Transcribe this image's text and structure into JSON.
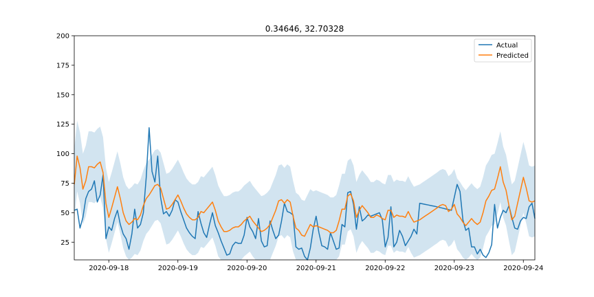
{
  "chart_data": {
    "type": "line",
    "title": "0.34646, 32.70328",
    "xlabel": "",
    "ylabel": "",
    "x_start": "2020-09-17 12:00",
    "x_step_hours": 1,
    "x_ticks": [
      "2020-09-18",
      "2020-09-19",
      "2020-09-20",
      "2020-09-21",
      "2020-09-22",
      "2020-09-23",
      "2020-09-24"
    ],
    "ylim": [
      10,
      200
    ],
    "y_ticks": [
      25,
      50,
      75,
      100,
      125,
      150,
      175,
      200
    ],
    "legend_position": "top-right",
    "grid": false,
    "colors": {
      "actual": "#1f77b4",
      "predicted": "#ff7f0e",
      "band": "#1f77b4"
    },
    "series": [
      {
        "name": "Actual",
        "key": "actual",
        "anchors": [
          [
            0,
            52
          ],
          [
            1,
            53
          ],
          [
            2,
            37
          ],
          [
            3,
            46
          ],
          [
            4,
            62
          ],
          [
            5,
            68
          ],
          [
            6,
            70
          ],
          [
            7,
            77
          ],
          [
            8,
            59
          ],
          [
            9,
            65
          ],
          [
            10,
            82
          ],
          [
            11,
            28
          ],
          [
            12,
            38
          ],
          [
            13,
            35
          ],
          [
            14,
            45
          ],
          [
            15,
            52
          ],
          [
            16,
            40
          ],
          [
            17,
            32
          ],
          [
            18,
            28
          ],
          [
            19,
            19
          ],
          [
            20,
            32
          ],
          [
            21,
            53
          ],
          [
            22,
            37
          ],
          [
            23,
            40
          ],
          [
            24,
            50
          ],
          [
            25,
            80
          ],
          [
            26,
            122
          ],
          [
            27,
            85
          ],
          [
            28,
            76
          ],
          [
            29,
            98
          ],
          [
            30,
            63
          ],
          [
            31,
            49
          ],
          [
            32,
            51
          ],
          [
            33,
            47
          ],
          [
            34,
            52
          ],
          [
            35,
            61
          ],
          [
            36,
            59
          ],
          [
            37,
            51
          ],
          [
            38,
            44
          ],
          [
            39,
            37
          ],
          [
            40,
            33
          ],
          [
            41,
            30
          ],
          [
            42,
            28
          ],
          [
            43,
            51
          ],
          [
            44,
            41
          ],
          [
            45,
            33
          ],
          [
            46,
            29
          ],
          [
            47,
            40
          ],
          [
            48,
            50
          ],
          [
            49,
            39
          ],
          [
            50,
            33
          ],
          [
            51,
            26
          ],
          [
            52,
            20
          ],
          [
            53,
            14
          ],
          [
            54,
            15
          ],
          [
            55,
            22
          ],
          [
            56,
            25
          ],
          [
            57,
            24
          ],
          [
            58,
            24
          ],
          [
            59,
            31
          ],
          [
            60,
            46
          ],
          [
            61,
            38
          ],
          [
            62,
            34
          ],
          [
            63,
            28
          ],
          [
            64,
            45
          ],
          [
            65,
            26
          ],
          [
            66,
            21
          ],
          [
            67,
            22
          ],
          [
            68,
            43
          ],
          [
            69,
            35
          ],
          [
            70,
            28
          ],
          [
            71,
            31
          ],
          [
            72,
            43
          ],
          [
            73,
            58
          ],
          [
            74,
            51
          ],
          [
            75,
            50
          ],
          [
            76,
            48
          ],
          [
            77,
            21
          ],
          [
            78,
            19
          ],
          [
            79,
            20
          ],
          [
            80,
            13
          ],
          [
            81,
            10
          ],
          [
            82,
            20
          ],
          [
            83,
            36
          ],
          [
            84,
            47
          ],
          [
            85,
            33
          ],
          [
            86,
            22
          ],
          [
            87,
            21
          ],
          [
            88,
            19
          ],
          [
            89,
            33
          ],
          [
            90,
            26
          ],
          [
            91,
            19
          ],
          [
            92,
            20
          ],
          [
            93,
            40
          ],
          [
            94,
            38
          ],
          [
            95,
            67
          ],
          [
            96,
            68
          ],
          [
            97,
            57
          ],
          [
            98,
            36
          ],
          [
            99,
            55
          ],
          [
            100,
            43
          ],
          [
            101,
            45
          ],
          [
            102,
            48
          ],
          [
            103,
            47
          ],
          [
            104,
            48
          ],
          [
            105,
            49
          ],
          [
            106,
            50
          ],
          [
            107,
            44
          ],
          [
            108,
            21
          ],
          [
            109,
            29
          ],
          [
            110,
            55
          ],
          [
            111,
            21
          ],
          [
            112,
            25
          ],
          [
            113,
            35
          ],
          [
            114,
            30
          ],
          [
            115,
            22
          ],
          [
            116,
            26
          ],
          [
            117,
            30
          ],
          [
            118,
            36
          ],
          [
            119,
            32
          ],
          [
            120,
            58
          ],
          [
            126,
            55
          ],
          [
            131,
            52
          ],
          [
            133,
            74
          ],
          [
            134,
            68
          ],
          [
            135,
            44
          ],
          [
            136,
            35
          ],
          [
            137,
            37
          ],
          [
            138,
            21
          ],
          [
            139,
            21
          ],
          [
            140,
            15
          ],
          [
            141,
            19
          ],
          [
            142,
            14
          ],
          [
            143,
            12
          ],
          [
            144,
            16
          ],
          [
            145,
            23
          ],
          [
            146,
            57
          ],
          [
            147,
            37
          ],
          [
            148,
            46
          ],
          [
            149,
            52
          ],
          [
            150,
            50
          ],
          [
            151,
            56
          ],
          [
            152,
            46
          ],
          [
            153,
            37
          ],
          [
            154,
            36
          ],
          [
            155,
            43
          ],
          [
            156,
            46
          ],
          [
            157,
            45
          ],
          [
            158,
            55
          ],
          [
            159,
            58
          ],
          [
            160,
            45
          ]
        ]
      },
      {
        "name": "Predicted",
        "key": "predicted",
        "anchors": [
          [
            0,
            74
          ],
          [
            1,
            98
          ],
          [
            2,
            88
          ],
          [
            3,
            70
          ],
          [
            4,
            77
          ],
          [
            5,
            89
          ],
          [
            6,
            89
          ],
          [
            7,
            88
          ],
          [
            8,
            91
          ],
          [
            9,
            93
          ],
          [
            10,
            84
          ],
          [
            11,
            58
          ],
          [
            12,
            46
          ],
          [
            13,
            54
          ],
          [
            14,
            63
          ],
          [
            15,
            72
          ],
          [
            16,
            62
          ],
          [
            17,
            50
          ],
          [
            18,
            43
          ],
          [
            19,
            40
          ],
          [
            20,
            42
          ],
          [
            21,
            45
          ],
          [
            22,
            44
          ],
          [
            23,
            48
          ],
          [
            24,
            56
          ],
          [
            25,
            62
          ],
          [
            26,
            65
          ],
          [
            27,
            69
          ],
          [
            28,
            73
          ],
          [
            29,
            74
          ],
          [
            30,
            71
          ],
          [
            31,
            62
          ],
          [
            32,
            53
          ],
          [
            33,
            54
          ],
          [
            34,
            57
          ],
          [
            35,
            61
          ],
          [
            36,
            65
          ],
          [
            37,
            60
          ],
          [
            38,
            54
          ],
          [
            39,
            49
          ],
          [
            40,
            46
          ],
          [
            41,
            44
          ],
          [
            42,
            44
          ],
          [
            43,
            46
          ],
          [
            44,
            51
          ],
          [
            45,
            50
          ],
          [
            46,
            53
          ],
          [
            47,
            56
          ],
          [
            48,
            59
          ],
          [
            49,
            52
          ],
          [
            50,
            43
          ],
          [
            51,
            38
          ],
          [
            52,
            34
          ],
          [
            53,
            34
          ],
          [
            54,
            35
          ],
          [
            55,
            37
          ],
          [
            56,
            38
          ],
          [
            57,
            38
          ],
          [
            58,
            40
          ],
          [
            59,
            43
          ],
          [
            60,
            45
          ],
          [
            61,
            47
          ],
          [
            62,
            43
          ],
          [
            63,
            40
          ],
          [
            64,
            37
          ],
          [
            65,
            34
          ],
          [
            66,
            35
          ],
          [
            67,
            37
          ],
          [
            68,
            40
          ],
          [
            69,
            46
          ],
          [
            70,
            52
          ],
          [
            71,
            60
          ],
          [
            72,
            61
          ],
          [
            73,
            58
          ],
          [
            74,
            61
          ],
          [
            75,
            59
          ],
          [
            76,
            47
          ],
          [
            77,
            37
          ],
          [
            78,
            35
          ],
          [
            79,
            31
          ],
          [
            80,
            30
          ],
          [
            81,
            35
          ],
          [
            82,
            40
          ],
          [
            83,
            38
          ],
          [
            84,
            39
          ],
          [
            85,
            38
          ],
          [
            86,
            37
          ],
          [
            87,
            36
          ],
          [
            88,
            35
          ],
          [
            89,
            33
          ],
          [
            90,
            33
          ],
          [
            91,
            35
          ],
          [
            92,
            43
          ],
          [
            93,
            53
          ],
          [
            94,
            53
          ],
          [
            95,
            64
          ],
          [
            96,
            66
          ],
          [
            97,
            60
          ],
          [
            98,
            46
          ],
          [
            99,
            52
          ],
          [
            100,
            56
          ],
          [
            101,
            53
          ],
          [
            102,
            50
          ],
          [
            103,
            46
          ],
          [
            104,
            46
          ],
          [
            105,
            48
          ],
          [
            106,
            47
          ],
          [
            107,
            45
          ],
          [
            108,
            44
          ],
          [
            109,
            52
          ],
          [
            110,
            52
          ],
          [
            111,
            46
          ],
          [
            112,
            48
          ],
          [
            113,
            47
          ],
          [
            114,
            47
          ],
          [
            115,
            46
          ],
          [
            116,
            51
          ],
          [
            117,
            46
          ],
          [
            118,
            42
          ],
          [
            119,
            43
          ],
          [
            120,
            44
          ],
          [
            126,
            54
          ],
          [
            127,
            56
          ],
          [
            128,
            57
          ],
          [
            129,
            56
          ],
          [
            130,
            51
          ],
          [
            131,
            53
          ],
          [
            132,
            57
          ],
          [
            133,
            49
          ],
          [
            134,
            46
          ],
          [
            135,
            42
          ],
          [
            136,
            39
          ],
          [
            137,
            42
          ],
          [
            138,
            45
          ],
          [
            139,
            42
          ],
          [
            140,
            40
          ],
          [
            141,
            42
          ],
          [
            142,
            50
          ],
          [
            143,
            60
          ],
          [
            144,
            64
          ],
          [
            145,
            69
          ],
          [
            146,
            70
          ],
          [
            147,
            79
          ],
          [
            148,
            89
          ],
          [
            149,
            76
          ],
          [
            150,
            69
          ],
          [
            151,
            56
          ],
          [
            152,
            44
          ],
          [
            153,
            47
          ],
          [
            154,
            58
          ],
          [
            155,
            69
          ],
          [
            156,
            80
          ],
          [
            157,
            71
          ],
          [
            158,
            60
          ],
          [
            159,
            59
          ],
          [
            160,
            60
          ]
        ]
      }
    ],
    "band": {
      "offset_low": 30,
      "offset_high": 30
    },
    "legend": [
      {
        "label": "Actual",
        "color": "#1f77b4"
      },
      {
        "label": "Predicted",
        "color": "#ff7f0e"
      }
    ]
  }
}
